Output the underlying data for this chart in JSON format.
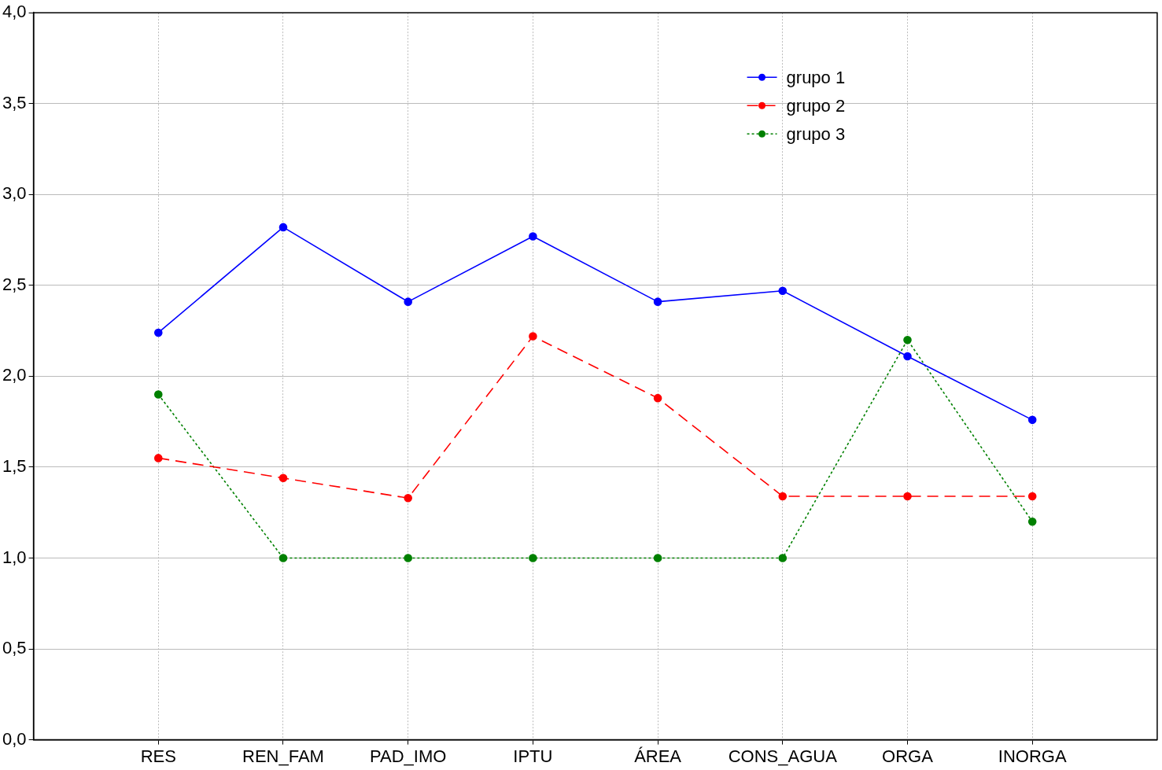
{
  "chart_data": {
    "type": "line",
    "categories": [
      "RES",
      "REN_FAM",
      "PAD_IMO",
      "IPTU",
      "ÁREA",
      "CONS_AGUA",
      "ORGA",
      "INORGA"
    ],
    "series": [
      {
        "name": "grupo 1",
        "color": "#0000ff",
        "line_style": "solid",
        "values": [
          2.24,
          2.82,
          2.41,
          2.77,
          2.41,
          2.47,
          2.11,
          1.76
        ]
      },
      {
        "name": "grupo 2",
        "color": "#ff0000",
        "line_style": "dashed",
        "values": [
          1.55,
          1.44,
          1.33,
          2.22,
          1.88,
          1.34,
          1.34,
          1.34
        ]
      },
      {
        "name": "grupo 3",
        "color": "#008000",
        "line_style": "dotted",
        "values": [
          1.9,
          1.0,
          1.0,
          1.0,
          1.0,
          1.0,
          2.2,
          1.2
        ]
      }
    ],
    "ylim": [
      0,
      4
    ],
    "yticks": [
      {
        "value": 0,
        "label": "0,0"
      },
      {
        "value": 0.5,
        "label": "0,5"
      },
      {
        "value": 1,
        "label": "1,0"
      },
      {
        "value": 1.5,
        "label": "1,5"
      },
      {
        "value": 2,
        "label": "2,0"
      },
      {
        "value": 2.5,
        "label": "2,5"
      },
      {
        "value": 3,
        "label": "3,0"
      },
      {
        "value": 3.5,
        "label": "3,5"
      },
      {
        "value": 4,
        "label": "4,0"
      }
    ],
    "grid": true,
    "legend": "top right",
    "marker": "circle"
  }
}
